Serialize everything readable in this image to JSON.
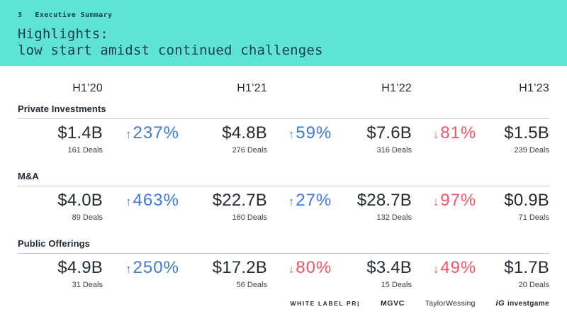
{
  "theme": {
    "band_bg": "#5FE3D3",
    "band_text": "#17404B",
    "text_dark": "#252C35",
    "text_deals": "#3A414A",
    "label_color": "#202A34",
    "up_color": "#3F7BD9",
    "down_color": "#F25468",
    "divider_color": "#C5CBD1",
    "logo_color": "#212B36",
    "page_bg": "#FFFFFF"
  },
  "slide": {
    "page_number": "3",
    "kicker": "Executive Summary",
    "title_line1": "Highlights:",
    "title_line2": "low start amidst continued challenges"
  },
  "table": {
    "period_headers": [
      "H1’20",
      "H1’21",
      "H1’22",
      "H1’23"
    ],
    "sections": [
      {
        "label": "Private Investments",
        "cells": [
          {
            "amount": "$1.4B",
            "deals": "161 Deals"
          },
          {
            "dir": "up",
            "arrow": "↑",
            "pct": "237%"
          },
          {
            "amount": "$4.8B",
            "deals": "276 Deals"
          },
          {
            "dir": "up",
            "arrow": "↑",
            "pct": "59%"
          },
          {
            "amount": "$7.6B",
            "deals": "316 Deals"
          },
          {
            "dir": "down",
            "arrow": "↓",
            "pct": "81%"
          },
          {
            "amount": "$1.5B",
            "deals": "239 Deals"
          }
        ]
      },
      {
        "label": "M&A",
        "cells": [
          {
            "amount": "$4.0B",
            "deals": "89 Deals"
          },
          {
            "dir": "up",
            "arrow": "↑",
            "pct": "463%"
          },
          {
            "amount": "$22.7B",
            "deals": "160 Deals"
          },
          {
            "dir": "up",
            "arrow": "↑",
            "pct": "27%"
          },
          {
            "amount": "$28.7B",
            "deals": "132 Deals"
          },
          {
            "dir": "down",
            "arrow": "↓",
            "pct": "97%"
          },
          {
            "amount": "$0.9B",
            "deals": "71 Deals"
          }
        ]
      },
      {
        "label": "Public Offerings",
        "cells": [
          {
            "amount": "$4.9B",
            "deals": "31 Deals"
          },
          {
            "dir": "up",
            "arrow": "↑",
            "pct": "250%"
          },
          {
            "amount": "$17.2B",
            "deals": "56 Deals"
          },
          {
            "dir": "down",
            "arrow": "↓",
            "pct": "80%"
          },
          {
            "amount": "$3.4B",
            "deals": "15 Deals"
          },
          {
            "dir": "down",
            "arrow": "↓",
            "pct": "49%"
          },
          {
            "amount": "$1.7B",
            "deals": "20 Deals"
          }
        ]
      }
    ]
  },
  "footer": {
    "logo_white_label": "WHITE LABEL PR|",
    "logo_mgvc": "MGVC",
    "logo_taylor": "TaylorWessing",
    "logo_ig_mark": "iG",
    "logo_investgame": "investgame"
  }
}
